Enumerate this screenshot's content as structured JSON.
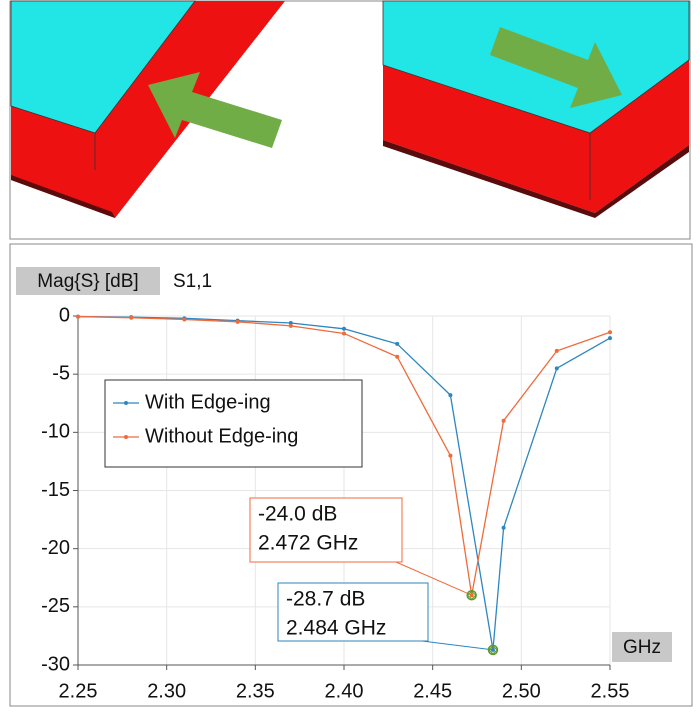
{
  "chart_data": {
    "type": "line",
    "ylabel": "Mag{S} [dB]",
    "subtitle": "S1,1",
    "xlabel": "GHz",
    "xlim": [
      2.25,
      2.55
    ],
    "ylim": [
      -30,
      0
    ],
    "xticks": [
      2.25,
      {
        "value": 2.3,
        "label": "2.30"
      },
      2.35,
      {
        "value": 2.4,
        "label": "2.40"
      },
      2.45,
      {
        "value": 2.5,
        "label": "2.50"
      },
      2.55
    ],
    "yticks": [
      0,
      -5,
      -10,
      -15,
      -20,
      -25,
      -30
    ],
    "grid": true,
    "legend": "upper left",
    "series": [
      {
        "name": "With Edge-ing",
        "color": "#2e86c1",
        "x": [
          2.25,
          2.28,
          2.31,
          2.34,
          2.37,
          2.4,
          2.43,
          2.46,
          2.484,
          2.49,
          2.52,
          2.55
        ],
        "values": [
          -0.05,
          -0.1,
          -0.2,
          -0.4,
          -0.6,
          -1.1,
          -2.4,
          -6.8,
          -28.7,
          -18.2,
          -4.5,
          -1.9
        ]
      },
      {
        "name": "Without Edge-ing",
        "color": "#f06a3a",
        "x": [
          2.25,
          2.28,
          2.31,
          2.34,
          2.37,
          2.4,
          2.43,
          2.46,
          2.472,
          2.49,
          2.52,
          2.55
        ],
        "values": [
          -0.05,
          -0.15,
          -0.3,
          -0.5,
          -0.85,
          -1.5,
          -3.5,
          -12.0,
          -24.0,
          -9.0,
          -3.0,
          -1.4
        ]
      }
    ],
    "annotations": [
      {
        "series": 1,
        "point": 8,
        "lines": [
          "-24.0 dB",
          "2.472 GHz"
        ]
      },
      {
        "series": 0,
        "point": 8,
        "lines": [
          "-28.7 dB",
          "2.484 GHz"
        ]
      }
    ]
  }
}
